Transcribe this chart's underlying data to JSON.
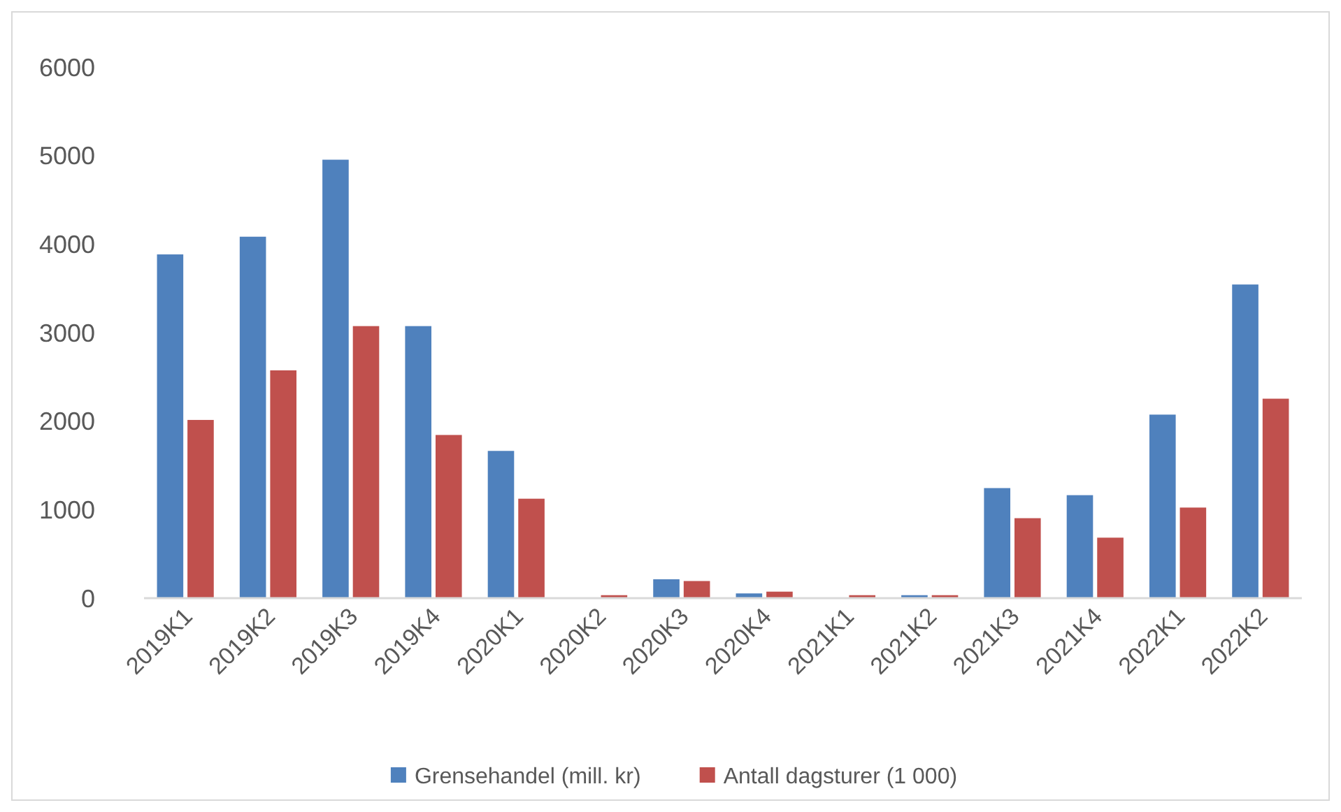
{
  "chart_data": {
    "type": "bar",
    "categories": [
      "2019K1",
      "2019K2",
      "2019K3",
      "2019K4",
      "2020K1",
      "2020K2",
      "2020K3",
      "2020K4",
      "2021K1",
      "2021K2",
      "2021K3",
      "2021K4",
      "2022K1",
      "2022K2"
    ],
    "series": [
      {
        "name": "Grensehandel (mill. kr)",
        "color": "#4f81bd",
        "values": [
          3890,
          4090,
          4960,
          3080,
          1670,
          0,
          220,
          60,
          0,
          40,
          1250,
          1170,
          2080,
          3550
        ]
      },
      {
        "name": "Antall dagsturer (1 000)",
        "color": "#c0504d",
        "values": [
          2020,
          2580,
          3080,
          1850,
          1130,
          40,
          200,
          80,
          40,
          40,
          910,
          690,
          1030,
          2260
        ]
      }
    ],
    "ylim": [
      0,
      6000
    ],
    "yticks": [
      0,
      1000,
      2000,
      3000,
      4000,
      5000,
      6000
    ],
    "grid": false,
    "legend": "bottom"
  }
}
